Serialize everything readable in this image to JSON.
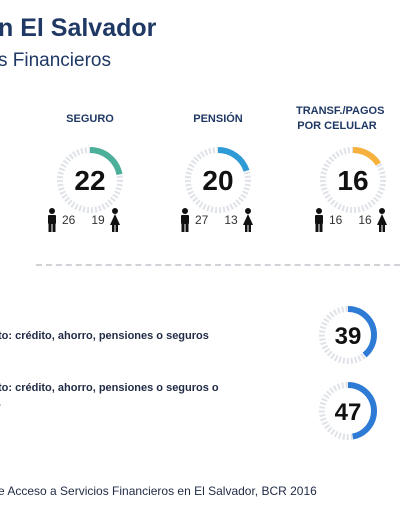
{
  "header": {
    "title": "n El Salvador",
    "subtitle": "s Financieros"
  },
  "chart_data": [
    {
      "type": "donut",
      "items": [
        {
          "label": "SEGURO",
          "value": 22,
          "hombres": 26,
          "mujeres": 19,
          "color": "#4caf9a"
        },
        {
          "label": "PENSIÓN",
          "value": 20,
          "hombres": 27,
          "mujeres": 13,
          "color": "#2e9ad6"
        },
        {
          "label": "TRANSF./PAGOS POR CELULAR",
          "value": 16,
          "hombres": 16,
          "mujeres": 16,
          "color": "#f5b13b"
        }
      ]
    },
    {
      "type": "donut",
      "items": [
        {
          "label": "to: crédito, ahorro, pensiones o seguros",
          "value": 39,
          "color": "#2e7bd6"
        },
        {
          "label": "to: crédito, ahorro, pensiones o seguros o",
          "label_line2": ".",
          "value": 47,
          "color": "#2e7bd6"
        }
      ]
    }
  ],
  "source": "e Acceso a Servicios Financieros en El Salvador, BCR 2016"
}
